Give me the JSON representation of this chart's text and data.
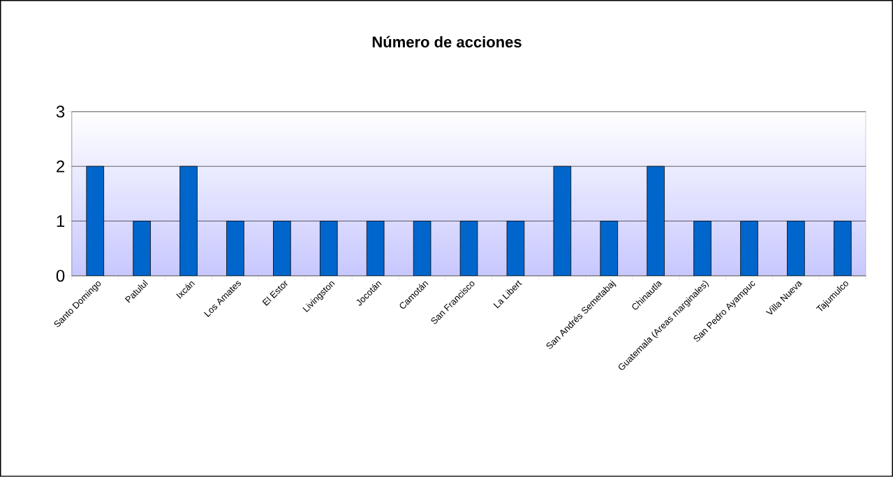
{
  "chart_data": {
    "type": "bar",
    "title": "Número de acciones",
    "categories": [
      "Santo Domingo",
      "Patulul",
      "Ixcán",
      "Los Amates",
      "El Estor",
      "Livingston",
      "Jocotán",
      "Camotán",
      "San Francisco",
      "La Libert",
      null,
      "San Andrés Semetabaj",
      "Chinautla",
      "Guatemala (Areas marginales)",
      "San Pedro Ayampuc",
      "Villa Nueva",
      "Tajumulco"
    ],
    "values": [
      2,
      1,
      2,
      1,
      1,
      1,
      1,
      1,
      1,
      1,
      2,
      1,
      2,
      1,
      1,
      1,
      1
    ],
    "color": "#0066cc",
    "ylim": [
      0,
      3
    ],
    "yticks": [
      0,
      1,
      2,
      3
    ],
    "grid": "y"
  }
}
